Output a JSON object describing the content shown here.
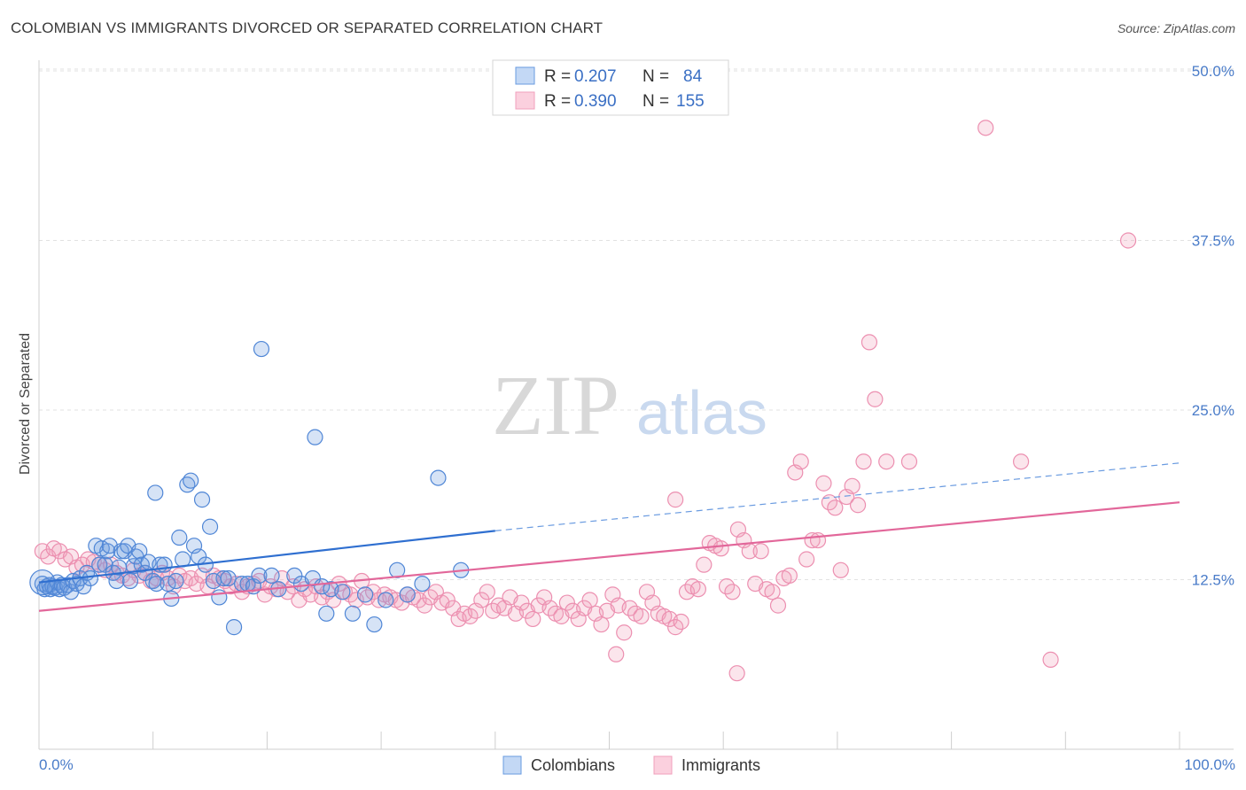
{
  "header": {
    "title": "COLOMBIAN VS IMMIGRANTS DIVORCED OR SEPARATED CORRELATION CHART",
    "source": "Source: ZipAtlas.com"
  },
  "watermark": {
    "zip": "ZIP",
    "atlas": "atlas"
  },
  "legend": {
    "r_label": "R =",
    "n_label": "N =",
    "rows": [
      {
        "series": "Colombians",
        "r": "0.207",
        "n": "84",
        "color": "#6a9be0"
      },
      {
        "series": "Immigrants",
        "r": "0.390",
        "n": "155",
        "color": "#f0a0bc"
      }
    ]
  },
  "bottom_legend": [
    "Colombians",
    "Immigrants"
  ],
  "chart_data": {
    "type": "scatter",
    "title": "COLOMBIAN VS IMMIGRANTS DIVORCED OR SEPARATED CORRELATION CHART",
    "xlabel": "",
    "ylabel": "Divorced or Separated",
    "xlim": [
      0,
      100
    ],
    "ylim": [
      0,
      50
    ],
    "x_tick_labels": [
      "0.0%",
      "100.0%"
    ],
    "y_ticks": [
      12.5,
      25.0,
      37.5,
      50.0
    ],
    "y_tick_labels": [
      "12.5%",
      "25.0%",
      "37.5%",
      "50.0%"
    ],
    "grid": "horizontal dashed",
    "legend_position": "top-center",
    "series": [
      {
        "name": "Colombians",
        "color": "#6a9be0",
        "trend": {
          "x0": 0,
          "y0": 12.3,
          "x1": 40,
          "y1": 16.1,
          "dashed_to_x": 100,
          "dashed_to_y": 21.1
        },
        "points": [
          [
            0.3,
            12.2
          ],
          [
            0.5,
            11.8
          ],
          [
            0.7,
            12.0
          ],
          [
            0.9,
            12.1
          ],
          [
            1.0,
            11.8
          ],
          [
            1.2,
            12.0
          ],
          [
            1.4,
            11.9
          ],
          [
            1.6,
            12.3
          ],
          [
            1.8,
            11.8
          ],
          [
            2.0,
            12.1
          ],
          [
            2.2,
            11.9
          ],
          [
            2.5,
            12.1
          ],
          [
            2.8,
            11.6
          ],
          [
            3.0,
            12.4
          ],
          [
            3.3,
            12.2
          ],
          [
            3.6,
            12.6
          ],
          [
            3.9,
            12.0
          ],
          [
            4.2,
            13.0
          ],
          [
            4.5,
            12.6
          ],
          [
            5.0,
            15.0
          ],
          [
            5.3,
            13.6
          ],
          [
            5.5,
            14.8
          ],
          [
            5.8,
            13.6
          ],
          [
            6.0,
            14.6
          ],
          [
            6.2,
            15.0
          ],
          [
            6.5,
            13.0
          ],
          [
            6.8,
            12.4
          ],
          [
            7.0,
            13.4
          ],
          [
            7.2,
            14.6
          ],
          [
            7.5,
            14.6
          ],
          [
            7.8,
            15.0
          ],
          [
            8.0,
            12.4
          ],
          [
            8.3,
            13.5
          ],
          [
            8.5,
            14.2
          ],
          [
            8.8,
            14.6
          ],
          [
            9.0,
            13.6
          ],
          [
            9.3,
            13.0
          ],
          [
            9.6,
            13.8
          ],
          [
            10.0,
            12.4
          ],
          [
            10.3,
            12.2
          ],
          [
            10.6,
            13.6
          ],
          [
            11.0,
            13.6
          ],
          [
            11.3,
            12.2
          ],
          [
            11.6,
            11.1
          ],
          [
            12.0,
            12.4
          ],
          [
            12.3,
            15.6
          ],
          [
            12.6,
            14.0
          ],
          [
            13.0,
            19.5
          ],
          [
            13.3,
            19.8
          ],
          [
            13.6,
            15.0
          ],
          [
            14.0,
            14.2
          ],
          [
            14.3,
            18.4
          ],
          [
            14.6,
            13.6
          ],
          [
            15.0,
            16.4
          ],
          [
            15.3,
            12.4
          ],
          [
            15.8,
            11.2
          ],
          [
            16.2,
            12.6
          ],
          [
            16.6,
            12.6
          ],
          [
            17.1,
            9.0
          ],
          [
            17.8,
            12.2
          ],
          [
            18.3,
            12.2
          ],
          [
            18.8,
            12.0
          ],
          [
            19.3,
            12.8
          ],
          [
            20.4,
            12.8
          ],
          [
            21.0,
            11.8
          ],
          [
            22.4,
            12.8
          ],
          [
            23.0,
            12.2
          ],
          [
            24.0,
            12.6
          ],
          [
            24.8,
            12.0
          ],
          [
            25.2,
            10.0
          ],
          [
            25.6,
            11.8
          ],
          [
            26.6,
            11.6
          ],
          [
            27.5,
            10.0
          ],
          [
            28.6,
            11.4
          ],
          [
            29.4,
            9.2
          ],
          [
            30.4,
            11.0
          ],
          [
            31.4,
            13.2
          ],
          [
            32.3,
            11.4
          ],
          [
            33.6,
            12.2
          ],
          [
            37.0,
            13.2
          ],
          [
            35.0,
            20.0
          ],
          [
            19.5,
            29.5
          ],
          [
            24.2,
            23.0
          ],
          [
            10.2,
            18.9
          ]
        ]
      },
      {
        "name": "Immigrants",
        "color": "#f0a0bc",
        "trend": {
          "x0": 0,
          "y0": 10.2,
          "x1": 100,
          "y1": 18.2
        },
        "points": [
          [
            0.3,
            14.6
          ],
          [
            0.8,
            14.2
          ],
          [
            1.3,
            14.8
          ],
          [
            1.8,
            14.6
          ],
          [
            2.3,
            14.0
          ],
          [
            2.8,
            14.2
          ],
          [
            3.3,
            13.4
          ],
          [
            3.8,
            13.6
          ],
          [
            4.3,
            14.0
          ],
          [
            4.8,
            13.8
          ],
          [
            5.3,
            13.6
          ],
          [
            5.8,
            13.2
          ],
          [
            6.3,
            13.6
          ],
          [
            6.8,
            13.0
          ],
          [
            7.3,
            12.8
          ],
          [
            7.8,
            12.6
          ],
          [
            8.3,
            13.2
          ],
          [
            8.8,
            12.8
          ],
          [
            9.3,
            13.0
          ],
          [
            9.8,
            12.4
          ],
          [
            10.3,
            12.6
          ],
          [
            10.8,
            13.0
          ],
          [
            11.3,
            12.6
          ],
          [
            11.8,
            12.0
          ],
          [
            12.3,
            12.8
          ],
          [
            12.8,
            12.4
          ],
          [
            13.3,
            12.6
          ],
          [
            13.8,
            12.2
          ],
          [
            14.3,
            12.8
          ],
          [
            14.8,
            12.0
          ],
          [
            15.3,
            12.8
          ],
          [
            15.8,
            12.6
          ],
          [
            16.3,
            12.4
          ],
          [
            16.8,
            12.0
          ],
          [
            17.3,
            12.2
          ],
          [
            17.8,
            11.6
          ],
          [
            18.3,
            12.0
          ],
          [
            18.8,
            12.2
          ],
          [
            19.3,
            12.4
          ],
          [
            19.8,
            11.4
          ],
          [
            20.3,
            12.0
          ],
          [
            20.8,
            11.8
          ],
          [
            21.3,
            12.6
          ],
          [
            21.8,
            11.6
          ],
          [
            22.3,
            12.0
          ],
          [
            22.8,
            11.0
          ],
          [
            23.3,
            11.8
          ],
          [
            23.8,
            11.4
          ],
          [
            24.3,
            12.0
          ],
          [
            24.8,
            11.2
          ],
          [
            25.3,
            11.6
          ],
          [
            25.8,
            11.0
          ],
          [
            26.3,
            12.2
          ],
          [
            26.8,
            11.6
          ],
          [
            27.3,
            11.4
          ],
          [
            27.8,
            11.0
          ],
          [
            28.3,
            12.4
          ],
          [
            28.8,
            11.2
          ],
          [
            29.3,
            11.6
          ],
          [
            29.8,
            11.0
          ],
          [
            30.3,
            11.4
          ],
          [
            30.8,
            11.2
          ],
          [
            31.3,
            11.0
          ],
          [
            31.8,
            10.8
          ],
          [
            32.3,
            11.4
          ],
          [
            32.8,
            11.2
          ],
          [
            33.3,
            11.0
          ],
          [
            33.8,
            10.6
          ],
          [
            34.3,
            11.2
          ],
          [
            34.8,
            11.6
          ],
          [
            35.3,
            10.8
          ],
          [
            35.8,
            11.0
          ],
          [
            36.3,
            10.4
          ],
          [
            36.8,
            9.6
          ],
          [
            37.3,
            10.0
          ],
          [
            37.8,
            9.8
          ],
          [
            38.3,
            10.2
          ],
          [
            38.8,
            11.0
          ],
          [
            39.3,
            11.6
          ],
          [
            39.8,
            10.2
          ],
          [
            40.3,
            10.6
          ],
          [
            40.8,
            10.4
          ],
          [
            41.3,
            11.2
          ],
          [
            41.8,
            10.0
          ],
          [
            42.3,
            10.8
          ],
          [
            42.8,
            10.2
          ],
          [
            43.3,
            9.6
          ],
          [
            43.8,
            10.6
          ],
          [
            44.3,
            11.2
          ],
          [
            44.8,
            10.4
          ],
          [
            45.3,
            10.0
          ],
          [
            45.8,
            9.8
          ],
          [
            46.3,
            10.8
          ],
          [
            46.8,
            10.2
          ],
          [
            47.3,
            9.6
          ],
          [
            47.8,
            10.4
          ],
          [
            48.3,
            11.0
          ],
          [
            48.8,
            10.0
          ],
          [
            49.3,
            9.2
          ],
          [
            49.8,
            10.2
          ],
          [
            50.3,
            11.4
          ],
          [
            50.8,
            10.6
          ],
          [
            51.3,
            8.6
          ],
          [
            51.8,
            10.4
          ],
          [
            52.3,
            10.0
          ],
          [
            52.8,
            9.8
          ],
          [
            53.3,
            11.6
          ],
          [
            53.8,
            10.8
          ],
          [
            54.3,
            10.0
          ],
          [
            54.8,
            9.8
          ],
          [
            55.3,
            9.6
          ],
          [
            55.8,
            9.0
          ],
          [
            56.3,
            9.4
          ],
          [
            56.8,
            11.6
          ],
          [
            57.3,
            12.0
          ],
          [
            57.8,
            11.8
          ],
          [
            58.3,
            13.6
          ],
          [
            58.8,
            15.2
          ],
          [
            59.3,
            15.0
          ],
          [
            59.8,
            14.8
          ],
          [
            60.3,
            12.0
          ],
          [
            60.8,
            11.6
          ],
          [
            61.3,
            16.2
          ],
          [
            61.8,
            15.4
          ],
          [
            62.3,
            14.6
          ],
          [
            62.8,
            12.2
          ],
          [
            63.3,
            14.6
          ],
          [
            63.8,
            11.8
          ],
          [
            64.3,
            11.6
          ],
          [
            64.8,
            10.6
          ],
          [
            65.3,
            12.6
          ],
          [
            65.8,
            12.8
          ],
          [
            66.3,
            20.4
          ],
          [
            66.8,
            21.2
          ],
          [
            67.3,
            14.0
          ],
          [
            67.8,
            15.4
          ],
          [
            68.3,
            15.4
          ],
          [
            68.8,
            19.6
          ],
          [
            69.3,
            18.2
          ],
          [
            69.8,
            17.8
          ],
          [
            70.3,
            13.2
          ],
          [
            70.8,
            18.6
          ],
          [
            71.3,
            19.4
          ],
          [
            71.8,
            18.0
          ],
          [
            72.3,
            21.2
          ],
          [
            72.8,
            30.0
          ],
          [
            73.3,
            25.8
          ],
          [
            74.3,
            21.2
          ],
          [
            76.3,
            21.2
          ],
          [
            83.0,
            45.8
          ],
          [
            95.5,
            37.5
          ],
          [
            50.6,
            7.0
          ],
          [
            61.2,
            5.6
          ],
          [
            88.7,
            6.6
          ],
          [
            86.1,
            21.2
          ],
          [
            55.8,
            18.4
          ]
        ]
      }
    ]
  }
}
